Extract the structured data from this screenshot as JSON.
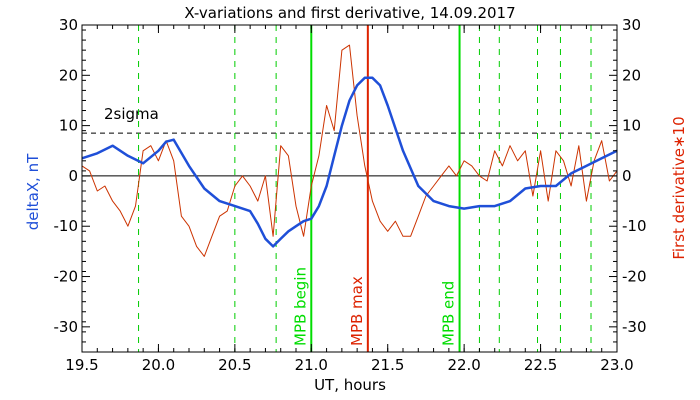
{
  "chart_data": {
    "type": "line",
    "title": "X-variations and first derivative, 14.09.2017",
    "xlabel": "UT, hours",
    "ylabel_left": "deltaX, nT",
    "ylabel_right": "First derivative∗10",
    "xlim": [
      19.5,
      23.0
    ],
    "ylim": [
      -35,
      30
    ],
    "x_ticks": [
      "19.5",
      "20.0",
      "20.5",
      "21.0",
      "21.5",
      "22.0",
      "22.5",
      "23.0"
    ],
    "y_ticks": [
      "30",
      "20",
      "10",
      "0",
      "-10",
      "-20",
      "-30"
    ],
    "threshold": {
      "label": "2sigma",
      "value": 8.5
    },
    "vertical_markers": [
      {
        "x": 21.0,
        "label": "MPB begin",
        "color": "#00dd00"
      },
      {
        "x": 21.37,
        "label": "MPB max",
        "color": "#dd2200"
      },
      {
        "x": 21.97,
        "label": "MPB end",
        "color": "#00dd00"
      }
    ],
    "dashed_markers": [
      19.87,
      20.5,
      20.77,
      22.1,
      22.23,
      22.48,
      22.63,
      22.83
    ],
    "series": [
      {
        "color": "#1f4fd8",
        "x": [
          19.5,
          19.6,
          19.7,
          19.8,
          19.9,
          20.0,
          20.05,
          20.1,
          20.2,
          20.3,
          20.4,
          20.5,
          20.6,
          20.65,
          20.7,
          20.75,
          20.8,
          20.85,
          20.9,
          20.95,
          21.0,
          21.05,
          21.1,
          21.15,
          21.2,
          21.25,
          21.3,
          21.35,
          21.4,
          21.45,
          21.5,
          21.6,
          21.7,
          21.8,
          21.9,
          22.0,
          22.1,
          22.2,
          22.3,
          22.4,
          22.5,
          22.6,
          22.7,
          22.8,
          22.9,
          23.0
        ],
        "values": [
          3.5,
          4.5,
          6.0,
          4.0,
          2.5,
          5.0,
          6.8,
          7.2,
          2.0,
          -2.5,
          -5.0,
          -6.0,
          -7.0,
          -9.5,
          -12.5,
          -14.0,
          -12.5,
          -11.0,
          -10.0,
          -9.0,
          -8.5,
          -6.0,
          -2.0,
          4.0,
          10.0,
          15.0,
          18.0,
          19.5,
          19.5,
          18.0,
          14.0,
          5.0,
          -2.0,
          -5.0,
          -6.0,
          -6.5,
          -6.0,
          -6.0,
          -5.0,
          -2.5,
          -2.0,
          -2.0,
          0.5,
          2.0,
          3.5,
          5.0
        ]
      },
      {
        "color": "#cc3300",
        "x": [
          19.5,
          19.55,
          19.6,
          19.65,
          19.7,
          19.75,
          19.8,
          19.85,
          19.9,
          19.95,
          20.0,
          20.05,
          20.1,
          20.15,
          20.2,
          20.25,
          20.3,
          20.35,
          20.4,
          20.45,
          20.5,
          20.55,
          20.6,
          20.65,
          20.7,
          20.75,
          20.8,
          20.85,
          20.9,
          20.95,
          21.0,
          21.05,
          21.1,
          21.15,
          21.2,
          21.25,
          21.3,
          21.35,
          21.4,
          21.45,
          21.5,
          21.55,
          21.6,
          21.65,
          21.7,
          21.75,
          21.8,
          21.85,
          21.9,
          21.95,
          22.0,
          22.05,
          22.1,
          22.15,
          22.2,
          22.25,
          22.3,
          22.35,
          22.4,
          22.45,
          22.5,
          22.55,
          22.6,
          22.65,
          22.7,
          22.75,
          22.8,
          22.85,
          22.9,
          22.95,
          23.0
        ],
        "values": [
          2,
          1,
          -3,
          -2,
          -5,
          -7,
          -10,
          -6,
          5,
          6,
          3,
          7,
          3,
          -8,
          -10,
          -14,
          -16,
          -12,
          -8,
          -7,
          -2,
          0,
          -2,
          -5,
          0,
          -12,
          6,
          4,
          -6,
          -12,
          -2,
          4,
          14,
          9,
          25,
          26,
          12,
          2,
          -5,
          -9,
          -11,
          -9,
          -12,
          -12,
          -8,
          -4,
          -2,
          0,
          2,
          0,
          3,
          2,
          0,
          -1,
          5,
          2,
          6,
          3,
          5,
          -4,
          5,
          -5,
          5,
          3,
          -2,
          6,
          -5,
          3,
          7,
          -1,
          1
        ]
      }
    ]
  }
}
